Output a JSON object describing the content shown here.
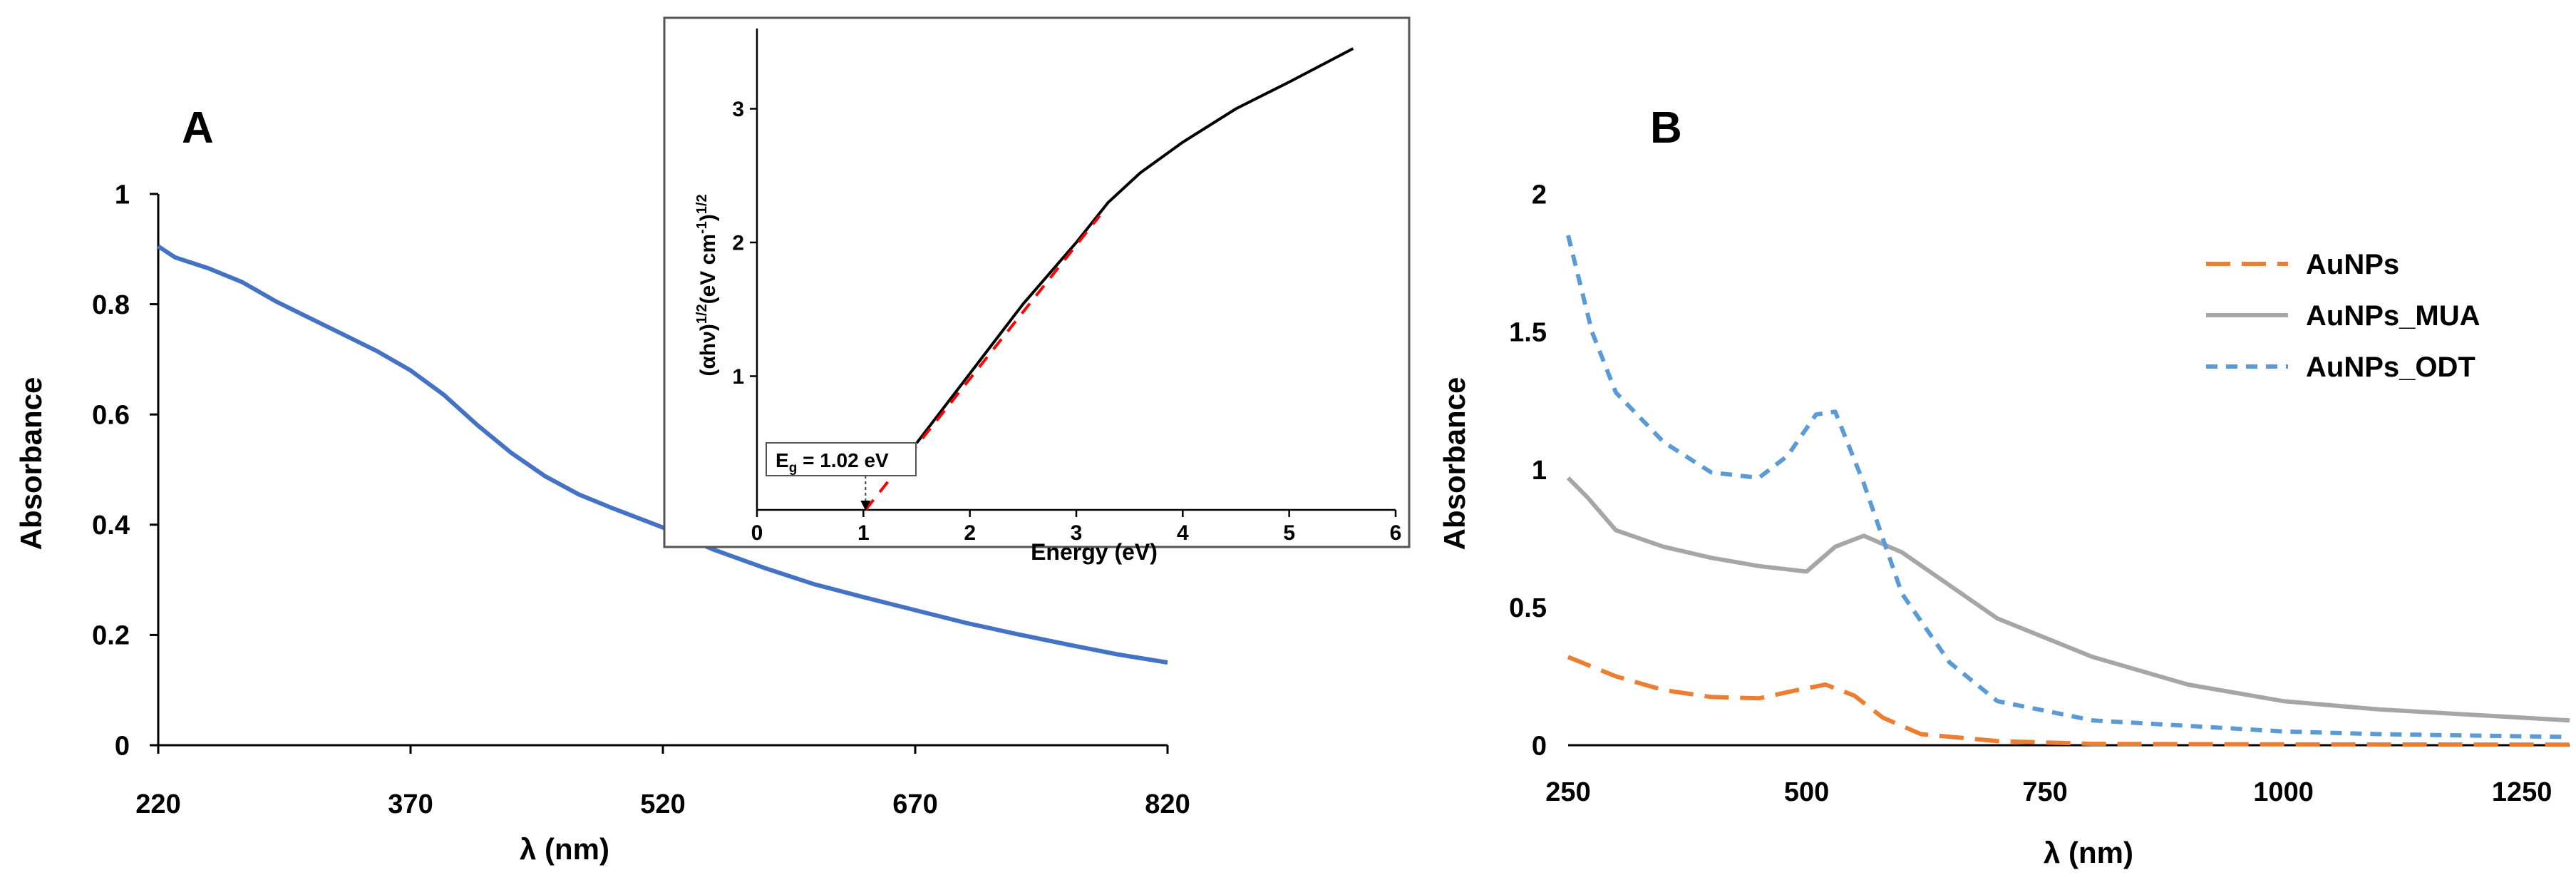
{
  "chart_data": [
    {
      "panel": "A",
      "type": "line",
      "xlabel": "λ (nm)",
      "ylabel": "Absorbance",
      "xlim": [
        220,
        820
      ],
      "ylim": [
        0,
        1
      ],
      "xticks": [
        220,
        370,
        520,
        670,
        820
      ],
      "yticks": [
        0,
        0.2,
        0.4,
        0.6,
        0.8,
        1
      ],
      "ytick_labels": [
        "0",
        "0.2",
        "0.4",
        "0.6",
        "0.8",
        "1"
      ],
      "grid": false,
      "series": [
        {
          "color": "#4472c4",
          "x": [
            220,
            230,
            250,
            270,
            290,
            310,
            330,
            350,
            370,
            390,
            410,
            430,
            450,
            470,
            490,
            520,
            550,
            580,
            610,
            640,
            670,
            700,
            730,
            760,
            790,
            820
          ],
          "y": [
            0.905,
            0.885,
            0.865,
            0.84,
            0.805,
            0.775,
            0.745,
            0.715,
            0.68,
            0.635,
            0.58,
            0.53,
            0.488,
            0.455,
            0.43,
            0.395,
            0.355,
            0.322,
            0.292,
            0.268,
            0.245,
            0.222,
            0.202,
            0.183,
            0.165,
            0.15
          ]
        }
      ]
    },
    {
      "panel": "A-inset",
      "type": "line",
      "xlabel": "Energy (eV)",
      "ylabel": "(αhν)1/2(eV cm-1)1/2",
      "xlim": [
        0,
        6
      ],
      "ylim": [
        0,
        3.6
      ],
      "xticks": [
        0,
        1,
        2,
        3,
        4,
        5,
        6
      ],
      "yticks": [
        1,
        2,
        3
      ],
      "grid": false,
      "annotation": "Eg = 1.02 eV",
      "annotation_x": 1.02,
      "series": [
        {
          "color": "#000000",
          "x": [
            1.5,
            2.0,
            2.5,
            3.0,
            3.3,
            3.6,
            4.0,
            4.5,
            5.0,
            5.6
          ],
          "y": [
            0.5,
            1.02,
            1.54,
            2.0,
            2.3,
            2.52,
            2.75,
            3.0,
            3.2,
            3.45
          ]
        },
        {
          "color": "#ff0000",
          "dash": "dashed",
          "x": [
            1.02,
            3.22
          ],
          "y": [
            0.0,
            2.2
          ]
        }
      ]
    },
    {
      "panel": "B",
      "type": "line",
      "xlabel": "λ (nm)",
      "ylabel": "Absorbance",
      "xlim": [
        250,
        1300
      ],
      "ylim": [
        0,
        2
      ],
      "xticks": [
        250,
        500,
        750,
        1000,
        1250
      ],
      "yticks": [
        0,
        0.5,
        1,
        1.5,
        2
      ],
      "legend_position": "top-right",
      "grid": false,
      "series": [
        {
          "name": "AuNPs",
          "color": "#ed7d31",
          "dash": "long-dash",
          "x": [
            250,
            300,
            350,
            400,
            450,
            490,
            520,
            550,
            580,
            620,
            700,
            800,
            1000,
            1300
          ],
          "y": [
            0.32,
            0.25,
            0.2,
            0.175,
            0.17,
            0.2,
            0.22,
            0.18,
            0.1,
            0.04,
            0.015,
            0.005,
            0.003,
            0.002
          ]
        },
        {
          "name": "AuNPs_MUA",
          "color": "#a6a6a6",
          "dash": "solid",
          "x": [
            250,
            270,
            300,
            350,
            400,
            450,
            500,
            530,
            560,
            600,
            650,
            700,
            800,
            900,
            1000,
            1100,
            1200,
            1300
          ],
          "y": [
            0.97,
            0.9,
            0.78,
            0.72,
            0.68,
            0.65,
            0.63,
            0.72,
            0.76,
            0.7,
            0.58,
            0.46,
            0.32,
            0.22,
            0.16,
            0.13,
            0.11,
            0.09
          ]
        },
        {
          "name": "AuNPs_ODT",
          "color": "#5b9bd5",
          "dash": "short-dash",
          "x": [
            250,
            275,
            300,
            350,
            400,
            450,
            480,
            510,
            530,
            560,
            600,
            650,
            700,
            800,
            900,
            1000,
            1100,
            1200,
            1300
          ],
          "y": [
            1.85,
            1.5,
            1.28,
            1.1,
            0.99,
            0.97,
            1.05,
            1.2,
            1.21,
            0.95,
            0.55,
            0.3,
            0.16,
            0.09,
            0.07,
            0.05,
            0.04,
            0.035,
            0.03
          ]
        }
      ]
    }
  ],
  "panel_labels": {
    "a": "A",
    "b": "B"
  }
}
